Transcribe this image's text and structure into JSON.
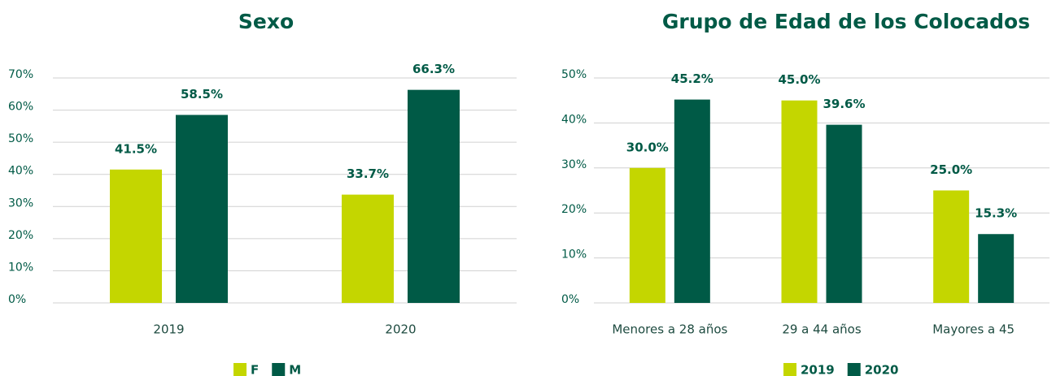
{
  "chart_data": [
    {
      "type": "bar",
      "title": "Sexo",
      "categories": [
        "2019",
        "2020"
      ],
      "series": [
        {
          "name": "F",
          "color": "#c4d600",
          "values": [
            41.5,
            33.7
          ],
          "value_labels": [
            "41.5%",
            "33.7%"
          ]
        },
        {
          "name": "M",
          "color": "#005a46",
          "values": [
            58.5,
            66.3
          ],
          "value_labels": [
            "58.5%",
            "66.3%"
          ]
        }
      ],
      "ylim": [
        0,
        70
      ],
      "yticks": [
        {
          "value": 0,
          "label": "0%"
        },
        {
          "value": 10,
          "label": "10%"
        },
        {
          "value": 20,
          "label": "20%"
        },
        {
          "value": 30,
          "label": "30%"
        },
        {
          "value": 40,
          "label": "40%"
        },
        {
          "value": 50,
          "label": "50%"
        },
        {
          "value": 60,
          "label": "60%"
        },
        {
          "value": 70,
          "label": "70%"
        }
      ],
      "grid": true,
      "legend": "bottom"
    },
    {
      "type": "bar",
      "title": "Grupo de Edad de los Colocados",
      "categories": [
        "Menores a 28 años",
        "29 a 44 años",
        "Mayores a 45"
      ],
      "series": [
        {
          "name": "2019",
          "color": "#c4d600",
          "values": [
            30.0,
            45.0,
            25.0
          ],
          "value_labels": [
            "30.0%",
            "45.0%",
            "25.0%"
          ]
        },
        {
          "name": "2020",
          "color": "#005a46",
          "values": [
            45.2,
            39.6,
            15.3
          ],
          "value_labels": [
            "45.2%",
            "39.6%",
            "15.3%"
          ]
        }
      ],
      "ylim": [
        0,
        50
      ],
      "yticks": [
        {
          "value": 0,
          "label": "0%"
        },
        {
          "value": 10,
          "label": "10%"
        },
        {
          "value": 20,
          "label": "20%"
        },
        {
          "value": 30,
          "label": "30%"
        },
        {
          "value": 40,
          "label": "40%"
        },
        {
          "value": 50,
          "label": "50%"
        }
      ],
      "grid": true,
      "legend": "bottom"
    }
  ]
}
